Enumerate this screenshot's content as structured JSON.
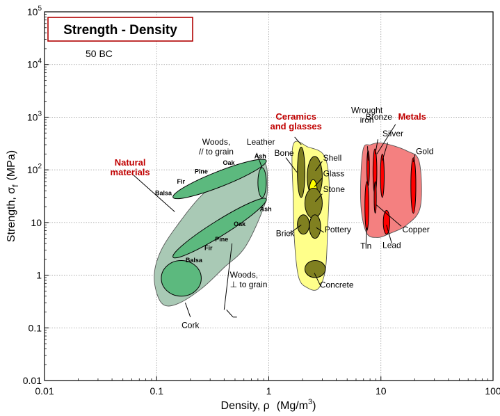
{
  "chart_data": {
    "type": "scatter",
    "title": "Strength - Density",
    "subtitle": "50 BC",
    "xlabel_text": "Density, ρ",
    "xlabel_unit": "(Mg/m",
    "xlabel_unit_sup": "3",
    "xlabel_unit_close": ")",
    "ylabel_text": "Strength, σ",
    "ylabel_sub": "f",
    "ylabel_unit": "(MPa)",
    "xscale": "log",
    "yscale": "log",
    "xlim": [
      0.01,
      100
    ],
    "ylim": [
      0.01,
      100000
    ],
    "grid": true,
    "x_ticks": [
      {
        "value": 0.01,
        "label": "0.01"
      },
      {
        "value": 0.1,
        "label": "0.1"
      },
      {
        "value": 1,
        "label": "1"
      },
      {
        "value": 10,
        "label": "10"
      },
      {
        "value": 100,
        "label": "100"
      }
    ],
    "y_ticks": [
      {
        "value": 0.01,
        "label": "0.01"
      },
      {
        "value": 0.1,
        "label": "0.1"
      },
      {
        "value": 1,
        "label": "1"
      },
      {
        "value": 10,
        "label": "10"
      },
      {
        "value": 100,
        "base": "10",
        "exp": "2"
      },
      {
        "value": 1000,
        "base": "10",
        "exp": "3"
      },
      {
        "value": 10000,
        "base": "10",
        "exp": "4"
      },
      {
        "value": 100000,
        "base": "10",
        "exp": "5"
      }
    ],
    "families": [
      {
        "name": "Natural materials",
        "label_lines": [
          "Natural",
          "materials"
        ],
        "color": "#a9c9b5"
      },
      {
        "name": "Ceramics and glasses",
        "label_lines": [
          "Ceramics",
          "and glasses"
        ],
        "color": "#ffff8a"
      },
      {
        "name": "Metals",
        "label_lines": [
          "Metals"
        ],
        "color": "#f48080"
      }
    ],
    "materials": [
      {
        "name": "Woods, // to grain",
        "label_lines": [
          "Woods,",
          "// to grain"
        ],
        "family": "Natural materials",
        "density": [
          0.14,
          0.95
        ],
        "strength": [
          30,
          150
        ],
        "color": "#5cb97e"
      },
      {
        "name": "Woods, ⊥ to grain",
        "label_lines": [
          "Woods,",
          "⊥ to grain"
        ],
        "family": "Natural materials",
        "density": [
          0.14,
          0.95
        ],
        "strength": [
          2.2,
          28
        ],
        "color": "#5cb97e"
      },
      {
        "name": "Leather",
        "label_lines": [
          "Leather"
        ],
        "family": "Natural materials",
        "density": [
          0.8,
          0.95
        ],
        "strength": [
          30,
          110
        ],
        "color": "#5cb97e"
      },
      {
        "name": "Cork",
        "label_lines": [
          "Cork"
        ],
        "family": "Natural materials",
        "density": [
          0.11,
          0.25
        ],
        "strength": [
          0.4,
          1.9
        ],
        "color": "#5cb97e"
      },
      {
        "name": "Bone",
        "label_lines": [
          "Bone"
        ],
        "family": "Ceramics and glasses",
        "density": [
          1.8,
          2.1
        ],
        "strength": [
          30,
          270
        ],
        "color": "#808020"
      },
      {
        "name": "Shell",
        "label_lines": [
          "Shell"
        ],
        "family": "Ceramics and glasses",
        "density": [
          2.2,
          3
        ],
        "strength": [
          30,
          180
        ],
        "color": "#808020"
      },
      {
        "name": "Glass",
        "label_lines": [
          "Glass"
        ],
        "family": "Ceramics and glasses",
        "density": [
          2.3,
          2.7
        ],
        "strength": [
          25,
          65
        ],
        "color": "#ffff00"
      },
      {
        "name": "Stone",
        "label_lines": [
          "Stone"
        ],
        "family": "Ceramics and glasses",
        "density": [
          2.1,
          3
        ],
        "strength": [
          12,
          45
        ],
        "color": "#808020"
      },
      {
        "name": "Brick",
        "label_lines": [
          "Brick"
        ],
        "family": "Ceramics and glasses",
        "density": [
          1.8,
          2.3
        ],
        "strength": [
          6,
          14
        ],
        "color": "#808020"
      },
      {
        "name": "Pottery",
        "label_lines": [
          "Pottery"
        ],
        "family": "Ceramics and glasses",
        "density": [
          2.3,
          2.9
        ],
        "strength": [
          5,
          14
        ],
        "color": "#808020"
      },
      {
        "name": "Concrete",
        "label_lines": [
          "Concrete"
        ],
        "family": "Ceramics and glasses",
        "density": [
          2.1,
          3.2
        ],
        "strength": [
          0.9,
          1.9
        ],
        "color": "#808020"
      },
      {
        "name": "Wrought iron",
        "label_lines": [
          "Wrought",
          "iron"
        ],
        "family": "Metals",
        "density": [
          7.5,
          7.9
        ],
        "strength": [
          50,
          230
        ],
        "color": "#ff0000"
      },
      {
        "name": "Bronze",
        "label_lines": [
          "Bronze"
        ],
        "family": "Metals",
        "density": [
          8.5,
          9.2
        ],
        "strength": [
          35,
          250
        ],
        "color": "#ff0000"
      },
      {
        "name": "Silver",
        "label_lines": [
          "Silver"
        ],
        "family": "Metals",
        "density": [
          9.9,
          10.7
        ],
        "strength": [
          30,
          200
        ],
        "color": "#ff0000"
      },
      {
        "name": "Gold",
        "label_lines": [
          "Gold"
        ],
        "family": "Metals",
        "density": [
          18.5,
          20.5
        ],
        "strength": [
          15,
          170
        ],
        "color": "#ff0000"
      },
      {
        "name": "Tin",
        "label_lines": [
          "Tin"
        ],
        "family": "Metals",
        "density": [
          7.2,
          7.8
        ],
        "strength": [
          7,
          60
        ],
        "color": "#ff0000"
      },
      {
        "name": "Copper",
        "label_lines": [
          "Copper"
        ],
        "family": "Metals",
        "density": [
          8.7,
          9.1
        ],
        "strength": [
          15,
          60
        ],
        "color": "#ff0000"
      },
      {
        "name": "Lead",
        "label_lines": [
          "Lead"
        ],
        "family": "Metals",
        "density": [
          10.5,
          12
        ],
        "strength": [
          6,
          17
        ],
        "color": "#ff0000"
      }
    ],
    "wood_species_labels": [
      "Balsa",
      "Fir",
      "Pine",
      "Oak",
      "Ash"
    ]
  }
}
